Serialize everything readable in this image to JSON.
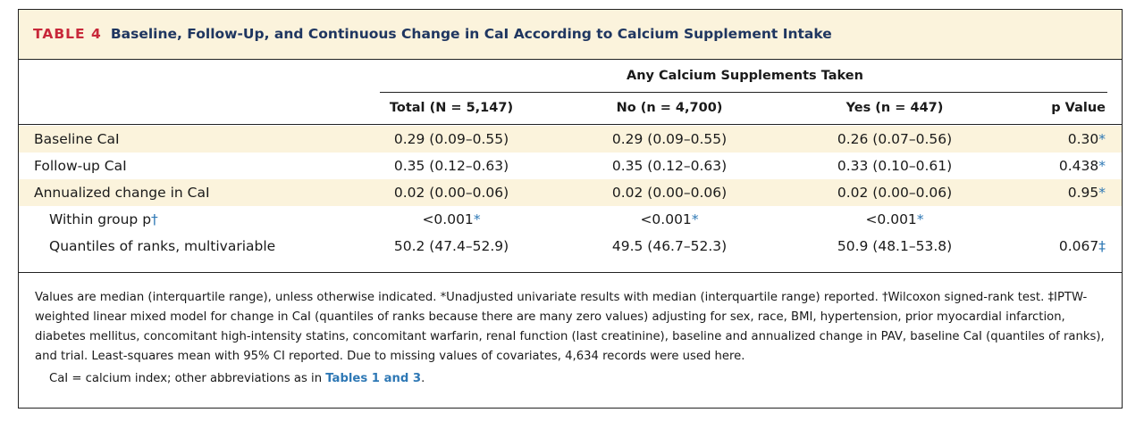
{
  "title": {
    "label": "TABLE 4",
    "text": "Baseline, Follow-Up, and Continuous Change in CaI According to Calcium Supplement Intake"
  },
  "group_header": "Any Calcium Supplements Taken",
  "columns": [
    "Total (N = 5,147)",
    "No (n = 4,700)",
    "Yes (n = 447)",
    "p Value"
  ],
  "rows": [
    {
      "label": "Baseline CaI",
      "total": "0.29 (0.09–0.55)",
      "no": "0.29 (0.09–0.55)",
      "yes": "0.26 (0.07–0.56)",
      "p": "0.30",
      "p_mark": "*"
    },
    {
      "label": "Follow-up CaI",
      "total": "0.35 (0.12–0.63)",
      "no": "0.35 (0.12–0.63)",
      "yes": "0.33 (0.10–0.61)",
      "p": "0.438",
      "p_mark": "*"
    },
    {
      "label": "Annualized change in CaI",
      "total": "0.02 (0.00–0.06)",
      "no": "0.02 (0.00–0.06)",
      "yes": "0.02 (0.00–0.06)",
      "p": "0.95",
      "p_mark": "*"
    },
    {
      "label": "Within group p",
      "label_mark": "†",
      "total": "<0.001",
      "total_mark": "*",
      "no": "<0.001",
      "no_mark": "*",
      "yes": "<0.001",
      "yes_mark": "*",
      "p": "",
      "p_mark": ""
    },
    {
      "label": "Quantiles of ranks, multivariable",
      "total": "50.2 (47.4–52.9)",
      "no": "49.5 (46.7–52.3)",
      "yes": "50.9 (48.1–53.8)",
      "p": "0.067",
      "p_mark": "‡"
    }
  ],
  "footnote": "Values are median (interquartile range), unless otherwise indicated. *Unadjusted univariate results with median (interquartile range) reported. †Wilcoxon signed-rank test. ‡IPTW-weighted linear mixed model for change in CaI (quantiles of ranks because there are many zero values) adjusting for sex, race, BMI, hypertension, prior myocardial infarction, diabetes mellitus, concomitant high-intensity statins, concomitant warfarin, renal function (last creatinine), baseline and annualized change in PAV, baseline CaI (quantiles of ranks), and trial. Least-squares mean with 95% CI reported. Due to missing values of covariates, 4,634 records were used here.",
  "abbrev": {
    "text": "CaI = calcium index; other abbreviations as in ",
    "link": "Tables 1 and 3",
    "end": "."
  }
}
